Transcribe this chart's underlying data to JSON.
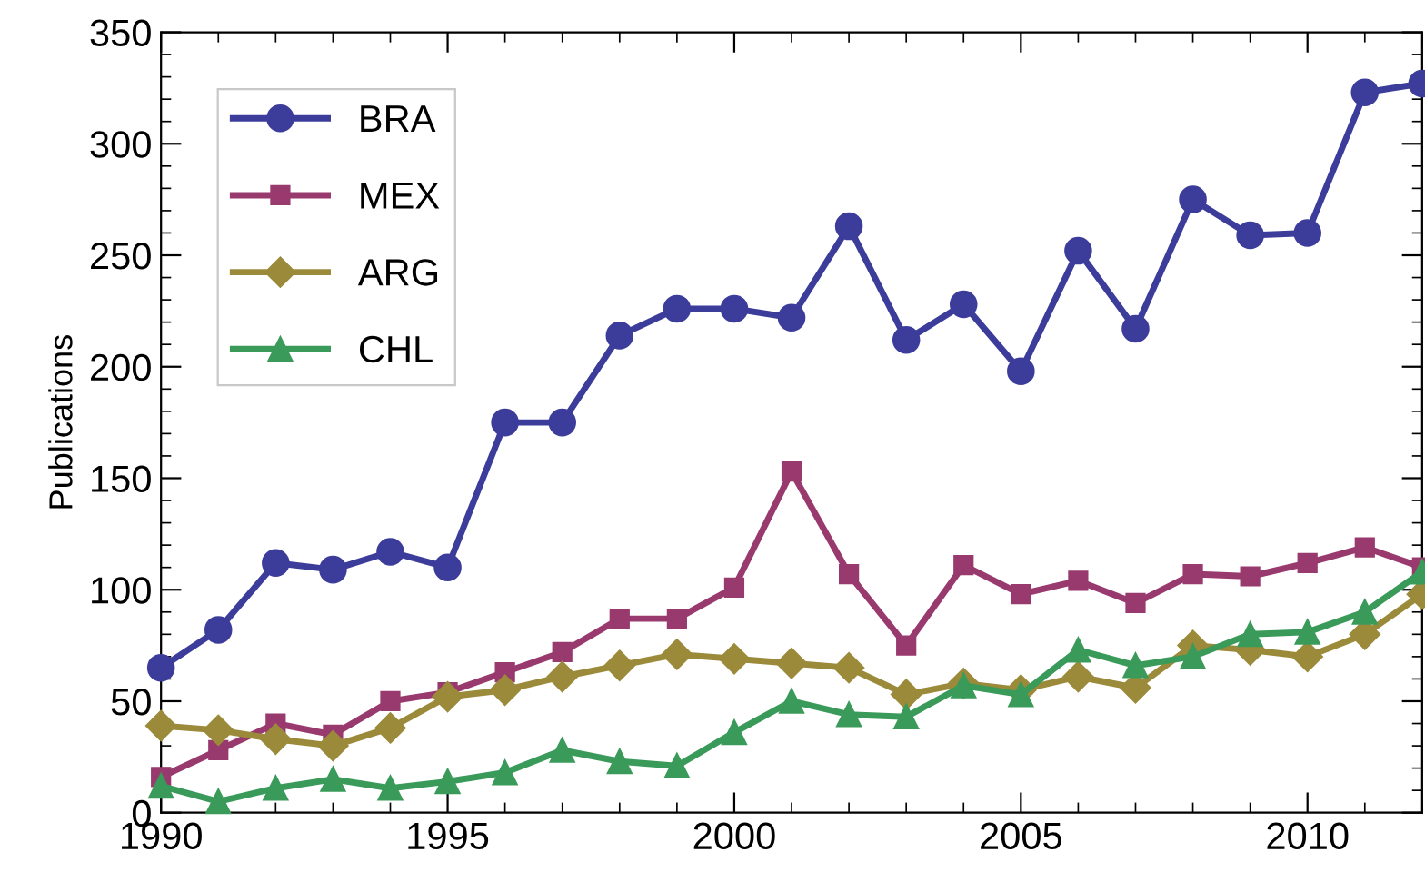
{
  "chart_data": {
    "type": "line",
    "ylabel": "Publications",
    "x": [
      1990,
      1991,
      1992,
      1993,
      1994,
      1995,
      1996,
      1997,
      1998,
      1999,
      2000,
      2001,
      2002,
      2003,
      2004,
      2005,
      2006,
      2007,
      2008,
      2009,
      2010,
      2011,
      2012
    ],
    "series": [
      {
        "name": "BRA",
        "color": "#3c3c9b",
        "marker": "circle",
        "values": [
          65,
          82,
          112,
          109,
          117,
          110,
          175,
          175,
          214,
          226,
          226,
          222,
          263,
          212,
          228,
          198,
          252,
          217,
          275,
          259,
          260,
          323,
          327
        ]
      },
      {
        "name": "MEX",
        "color": "#993a6e",
        "marker": "square",
        "values": [
          16,
          28,
          40,
          35,
          50,
          54,
          63,
          72,
          87,
          87,
          101,
          153,
          107,
          75,
          111,
          98,
          104,
          94,
          107,
          106,
          112,
          119,
          110
        ]
      },
      {
        "name": "ARG",
        "color": "#9a8a3a",
        "marker": "diamond",
        "values": [
          39,
          37,
          33,
          30,
          38,
          52,
          55,
          61,
          66,
          71,
          69,
          67,
          65,
          53,
          58,
          55,
          61,
          56,
          75,
          73,
          70,
          80,
          98
        ]
      },
      {
        "name": "CHL",
        "color": "#3a9a5a",
        "marker": "triangle",
        "values": [
          12,
          5,
          11,
          15,
          11,
          14,
          18,
          28,
          23,
          21,
          36,
          50,
          44,
          43,
          57,
          53,
          73,
          66,
          70,
          80,
          81,
          90,
          108
        ]
      }
    ],
    "xlim": [
      1990,
      2012
    ],
    "xticks": [
      1990,
      1995,
      2000,
      2005,
      2010
    ],
    "ylim": [
      0,
      350
    ],
    "yticks": [
      0,
      50,
      100,
      150,
      200,
      250,
      300,
      350
    ],
    "legend": "top left",
    "grid": false
  }
}
